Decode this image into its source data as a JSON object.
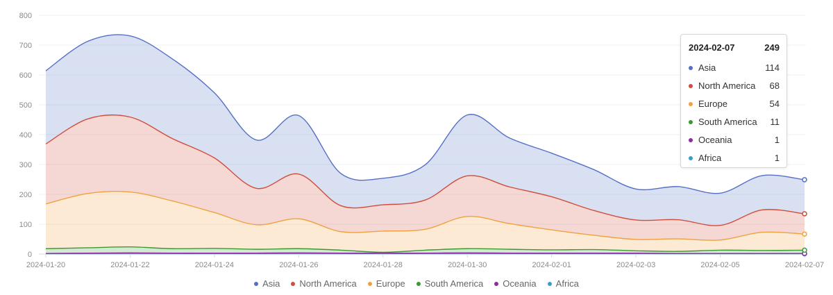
{
  "chart_data": {
    "type": "area",
    "stacked": true,
    "title": "",
    "xlabel": "",
    "ylabel": "",
    "ylim": [
      0,
      800
    ],
    "yticks": [
      0,
      100,
      200,
      300,
      400,
      500,
      600,
      700,
      800
    ],
    "grid": true,
    "legend_position": "bottom",
    "x": [
      "2024-01-20",
      "2024-01-21",
      "2024-01-22",
      "2024-01-23",
      "2024-01-24",
      "2024-01-25",
      "2024-01-26",
      "2024-01-27",
      "2024-01-28",
      "2024-01-29",
      "2024-01-30",
      "2024-01-31",
      "2024-02-01",
      "2024-02-02",
      "2024-02-03",
      "2024-02-04",
      "2024-02-05",
      "2024-02-06",
      "2024-02-07"
    ],
    "xticks": [
      "2024-01-20",
      "2024-01-22",
      "2024-01-24",
      "2024-01-26",
      "2024-01-28",
      "2024-01-30",
      "2024-02-01",
      "2024-02-03",
      "2024-02-05",
      "2024-02-07"
    ],
    "series": [
      {
        "name": "Africa",
        "color": "#3a9fc8",
        "values": [
          1,
          1,
          1,
          1,
          1,
          1,
          1,
          1,
          1,
          1,
          1,
          1,
          1,
          1,
          1,
          1,
          1,
          1,
          1
        ]
      },
      {
        "name": "Oceania",
        "color": "#8e2aa3",
        "values": [
          1,
          2,
          3,
          2,
          2,
          2,
          3,
          2,
          2,
          2,
          3,
          2,
          2,
          2,
          2,
          1,
          1,
          1,
          1
        ]
      },
      {
        "name": "South America",
        "color": "#3a9a32",
        "values": [
          16,
          18,
          20,
          15,
          16,
          13,
          14,
          10,
          3,
          10,
          14,
          13,
          11,
          12,
          8,
          7,
          11,
          10,
          11
        ]
      },
      {
        "name": "Europe",
        "color": "#f0a13f",
        "values": [
          150,
          182,
          184,
          160,
          120,
          82,
          100,
          62,
          71,
          70,
          108,
          86,
          67,
          48,
          38,
          42,
          34,
          61,
          54
        ]
      },
      {
        "name": "North America",
        "color": "#d14c3b",
        "values": [
          201,
          250,
          251,
          209,
          183,
          122,
          150,
          87,
          88,
          98,
          136,
          123,
          111,
          83,
          65,
          64,
          49,
          75,
          68
        ]
      },
      {
        "name": "Asia",
        "color": "#5470c6",
        "values": [
          245,
          260,
          272,
          267,
          218,
          162,
          196,
          108,
          89,
          118,
          204,
          164,
          146,
          137,
          104,
          111,
          108,
          115,
          114
        ]
      }
    ]
  },
  "tooltip": {
    "date": "2024-02-07",
    "total": "249",
    "rows": [
      {
        "name": "Asia",
        "value": "114",
        "color": "#5470c6"
      },
      {
        "name": "North America",
        "value": "68",
        "color": "#d14c3b"
      },
      {
        "name": "Europe",
        "value": "54",
        "color": "#f0a13f"
      },
      {
        "name": "South America",
        "value": "11",
        "color": "#3a9a32"
      },
      {
        "name": "Oceania",
        "value": "1",
        "color": "#8e2aa3"
      },
      {
        "name": "Africa",
        "value": "1",
        "color": "#3a9fc8"
      }
    ]
  },
  "legend": [
    {
      "name": "Asia",
      "color": "#5470c6"
    },
    {
      "name": "North America",
      "color": "#d14c3b"
    },
    {
      "name": "Europe",
      "color": "#f0a13f"
    },
    {
      "name": "South America",
      "color": "#3a9a32"
    },
    {
      "name": "Oceania",
      "color": "#8e2aa3"
    },
    {
      "name": "Africa",
      "color": "#3a9fc8"
    }
  ]
}
